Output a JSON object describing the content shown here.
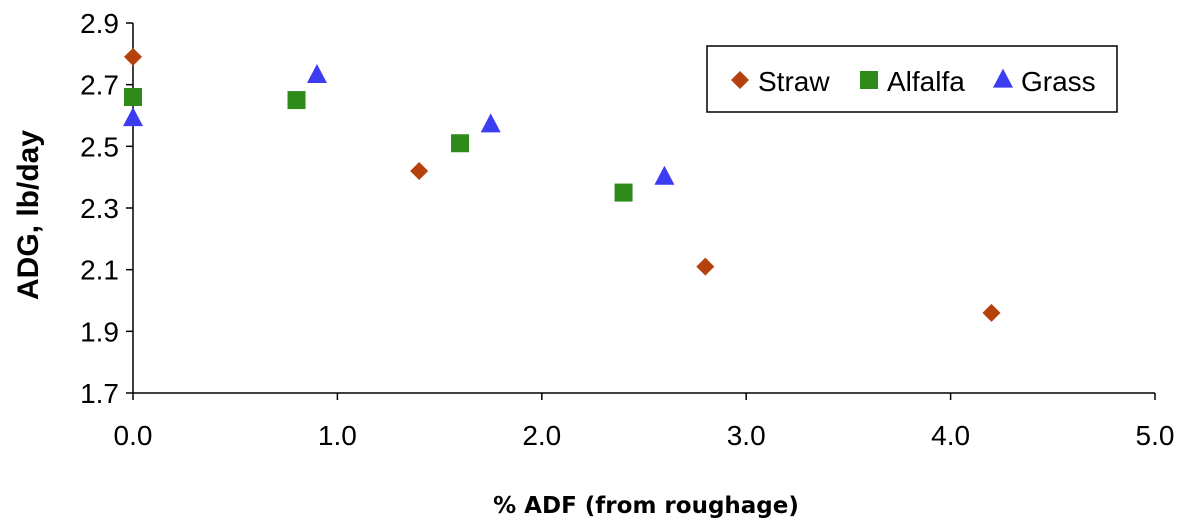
{
  "chart_data": {
    "type": "scatter",
    "title": "",
    "xlabel": "% ADF (from roughage)",
    "ylabel": "ADG, lb/day",
    "xlim": [
      0,
      5
    ],
    "ylim": [
      1.7,
      2.9
    ],
    "x_ticks": [
      "0.0",
      "1.0",
      "2.0",
      "3.0",
      "4.0",
      "5.0"
    ],
    "y_ticks": [
      "1.7",
      "1.9",
      "2.1",
      "2.3",
      "2.5",
      "2.7",
      "2.9"
    ],
    "grid": false,
    "legend_position": "top-right",
    "series": [
      {
        "name": "Straw",
        "marker": "diamond",
        "color": "#b5410c",
        "x": [
          0.0,
          1.4,
          2.8,
          4.2
        ],
        "y": [
          2.79,
          2.42,
          2.11,
          1.96
        ]
      },
      {
        "name": "Alfalfa",
        "marker": "square",
        "color": "#2e8b1a",
        "x": [
          0.0,
          0.8,
          1.6,
          2.4
        ],
        "y": [
          2.66,
          2.65,
          2.51,
          2.35
        ]
      },
      {
        "name": "Grass",
        "marker": "triangle",
        "color": "#3c3cf0",
        "x": [
          0.0,
          0.9,
          1.75,
          2.6
        ],
        "y": [
          2.59,
          2.73,
          2.57,
          2.4
        ]
      }
    ]
  }
}
